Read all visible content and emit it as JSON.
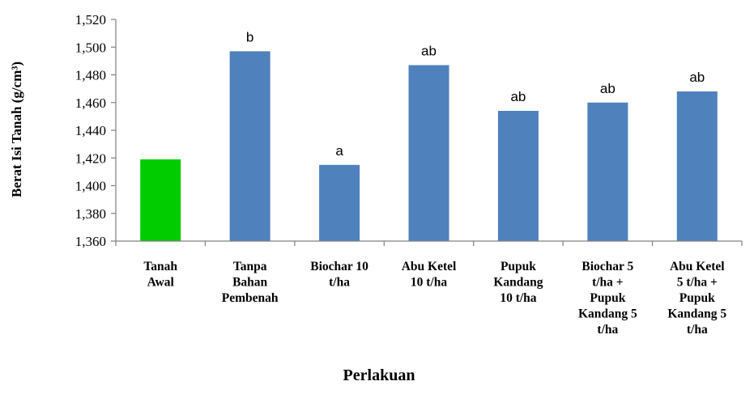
{
  "chart_data": {
    "type": "bar",
    "categories": [
      [
        "Tanah",
        "Awal"
      ],
      [
        "Tanpa",
        "Bahan",
        "Pembenah"
      ],
      [
        "Biochar 10",
        "t/ha"
      ],
      [
        "Abu Ketel",
        "10 t/ha"
      ],
      [
        "Pupuk",
        "Kandang",
        "10 t/ha"
      ],
      [
        "Biochar 5",
        "t/ha +",
        "Pupuk",
        "Kandang 5",
        "t/ha"
      ],
      [
        "Abu Ketel",
        "5 t/ha +",
        "Pupuk",
        "Kandang 5",
        "t/ha"
      ]
    ],
    "values": [
      1.419,
      1.497,
      1.415,
      1.487,
      1.454,
      1.46,
      1.468
    ],
    "data_labels": [
      "",
      "b",
      "a",
      "ab",
      "ab",
      "ab",
      "ab"
    ],
    "bar_colors": [
      "#00cc00",
      "#4f81bd",
      "#4f81bd",
      "#4f81bd",
      "#4f81bd",
      "#4f81bd",
      "#4f81bd"
    ],
    "ylim": [
      1.36,
      1.52
    ],
    "yticks": [
      "1,360",
      "1,380",
      "1,400",
      "1,420",
      "1,440",
      "1,460",
      "1,480",
      "1,500",
      "1,520"
    ],
    "xlabel": "Perlakuan",
    "ylabel": "Berat Isi Tanah (g/cm³)",
    "grid": false,
    "legend": "none"
  }
}
